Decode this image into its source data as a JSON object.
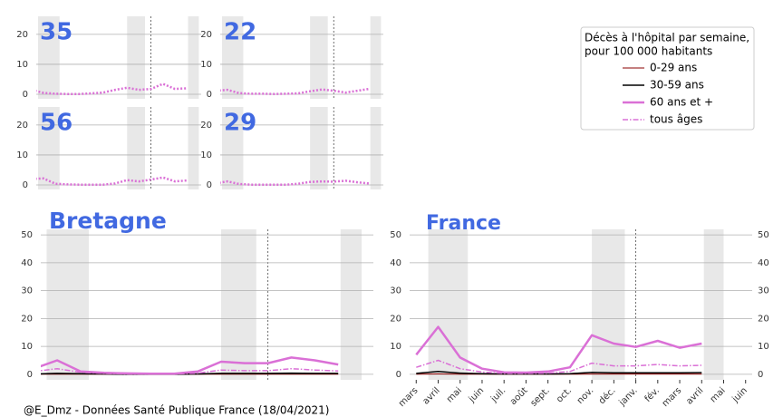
{
  "chart_data": [
    {
      "type": "line",
      "title": "35",
      "ylim": [
        -1.5,
        26
      ],
      "yticks": [
        0,
        10,
        20
      ],
      "grid": true,
      "series": [
        {
          "color": "#da70d6",
          "style": "dotted",
          "values": [
            1.5,
            0.5,
            0.2,
            0.1,
            0.1,
            0.3,
            0.6,
            1.5,
            2.2,
            1.5,
            1.8,
            3.5,
            1.8,
            2,
            null,
            null
          ]
        }
      ]
    },
    {
      "type": "line",
      "title": "22",
      "ylim": [
        -1.5,
        26
      ],
      "yticks": [
        0,
        10,
        20
      ],
      "grid": true,
      "series": [
        {
          "color": "#da70d6",
          "style": "dotted",
          "values": [
            1.2,
            1.5,
            0.4,
            0.2,
            0.2,
            0.1,
            0.2,
            0.3,
            1,
            1.6,
            1.2,
            0.6,
            1.2,
            1.8,
            null,
            null
          ]
        }
      ]
    },
    {
      "type": "line",
      "title": "56",
      "ylim": [
        -1.5,
        26
      ],
      "yticks": [
        0,
        10,
        20
      ],
      "grid": true,
      "series": [
        {
          "color": "#da70d6",
          "style": "dotted",
          "values": [
            2,
            2.2,
            0.4,
            0.2,
            0.1,
            0.1,
            0.1,
            0.5,
            1.6,
            1.2,
            1.8,
            2.5,
            1.2,
            1.5,
            null,
            null
          ]
        }
      ]
    },
    {
      "type": "line",
      "title": "29",
      "ylim": [
        -1.5,
        26
      ],
      "yticks": [
        0,
        10,
        20
      ],
      "grid": true,
      "series": [
        {
          "color": "#da70d6",
          "style": "dotted",
          "values": [
            0.5,
            1.2,
            0.3,
            0.1,
            0.1,
            0.1,
            0.1,
            0.4,
            1,
            1.2,
            1.1,
            1.4,
            0.9,
            0.5,
            null,
            null
          ]
        }
      ]
    },
    {
      "type": "line",
      "title": "Bretagne",
      "ylim": [
        -2,
        52
      ],
      "yticks": [
        0,
        10,
        20,
        30,
        40,
        50
      ],
      "grid": true,
      "series": [
        {
          "color": "#8b0000",
          "style": "solid",
          "width": 1,
          "values": [
            0.05,
            0.05,
            0.03,
            0.02,
            0.01,
            0.01,
            0.01,
            0.02,
            0.05,
            0.05,
            0.05,
            0.06,
            0.05,
            0.05,
            null,
            null
          ]
        },
        {
          "color": "#000000",
          "style": "solid",
          "width": 1.5,
          "values": [
            0.1,
            0.3,
            0.2,
            0.1,
            0,
            0,
            0,
            0.1,
            0.3,
            0.3,
            0.3,
            0.4,
            0.3,
            0.3,
            null,
            null
          ]
        },
        {
          "color": "#da70d6",
          "style": "solid",
          "width": 2.5,
          "values": [
            2,
            5,
            1,
            0.5,
            0.3,
            0.2,
            0.2,
            1,
            4.5,
            4,
            4,
            6,
            5,
            3.5,
            null,
            null
          ]
        },
        {
          "color": "#da70d6",
          "style": "dashdot",
          "width": 1.5,
          "values": [
            1,
            2,
            0.7,
            0.3,
            0.1,
            0.1,
            0.1,
            0.4,
            1.5,
            1.3,
            1.3,
            2,
            1.5,
            1.2,
            null,
            null
          ]
        }
      ]
    },
    {
      "type": "line",
      "title": "France",
      "ylim": [
        -2,
        52
      ],
      "yticks": [
        0,
        10,
        20,
        30,
        40,
        50
      ],
      "grid": true,
      "right_axis": true,
      "categories": [
        "mars",
        "avril",
        "mai",
        "juin",
        "juil.",
        "août",
        "sept.",
        "oct.",
        "nov.",
        "déc.",
        "janv.",
        "fév.",
        "mars",
        "avril",
        "mai",
        "juin"
      ],
      "series": [
        {
          "name": "0-29 ans",
          "color": "#8b0000",
          "style": "solid",
          "width": 1,
          "values": [
            0.05,
            0.1,
            0.05,
            0.03,
            0.02,
            0.02,
            0.02,
            0.03,
            0.08,
            0.07,
            0.07,
            0.08,
            0.07,
            0.08,
            null,
            null
          ]
        },
        {
          "name": "30-59 ans",
          "color": "#000000",
          "style": "solid",
          "width": 1.5,
          "values": [
            0.3,
            1,
            0.4,
            0.2,
            0.1,
            0.1,
            0.1,
            0.2,
            0.7,
            0.5,
            0.5,
            0.5,
            0.5,
            0.6,
            null,
            null
          ]
        },
        {
          "name": "60 ans et +",
          "color": "#da70d6",
          "style": "solid",
          "width": 2.5,
          "values": [
            7,
            17,
            6,
            2,
            0.7,
            0.6,
            1,
            2.5,
            14,
            11,
            9.8,
            12,
            9.5,
            11,
            null,
            null
          ]
        },
        {
          "name": "tous âges",
          "color": "#da70d6",
          "style": "dashdot",
          "width": 1.5,
          "values": [
            2.5,
            5,
            2,
            0.8,
            0.3,
            0.3,
            0.4,
            1,
            4,
            3,
            3,
            3.5,
            3,
            3.2,
            null,
            null
          ]
        }
      ]
    }
  ],
  "legend": {
    "title": [
      "Décès à l'hôpital par semaine,",
      "pour 100 000 habitants"
    ]
  },
  "footer": "@E_Dmz - Données Santé Publique France (18/04/2021)"
}
